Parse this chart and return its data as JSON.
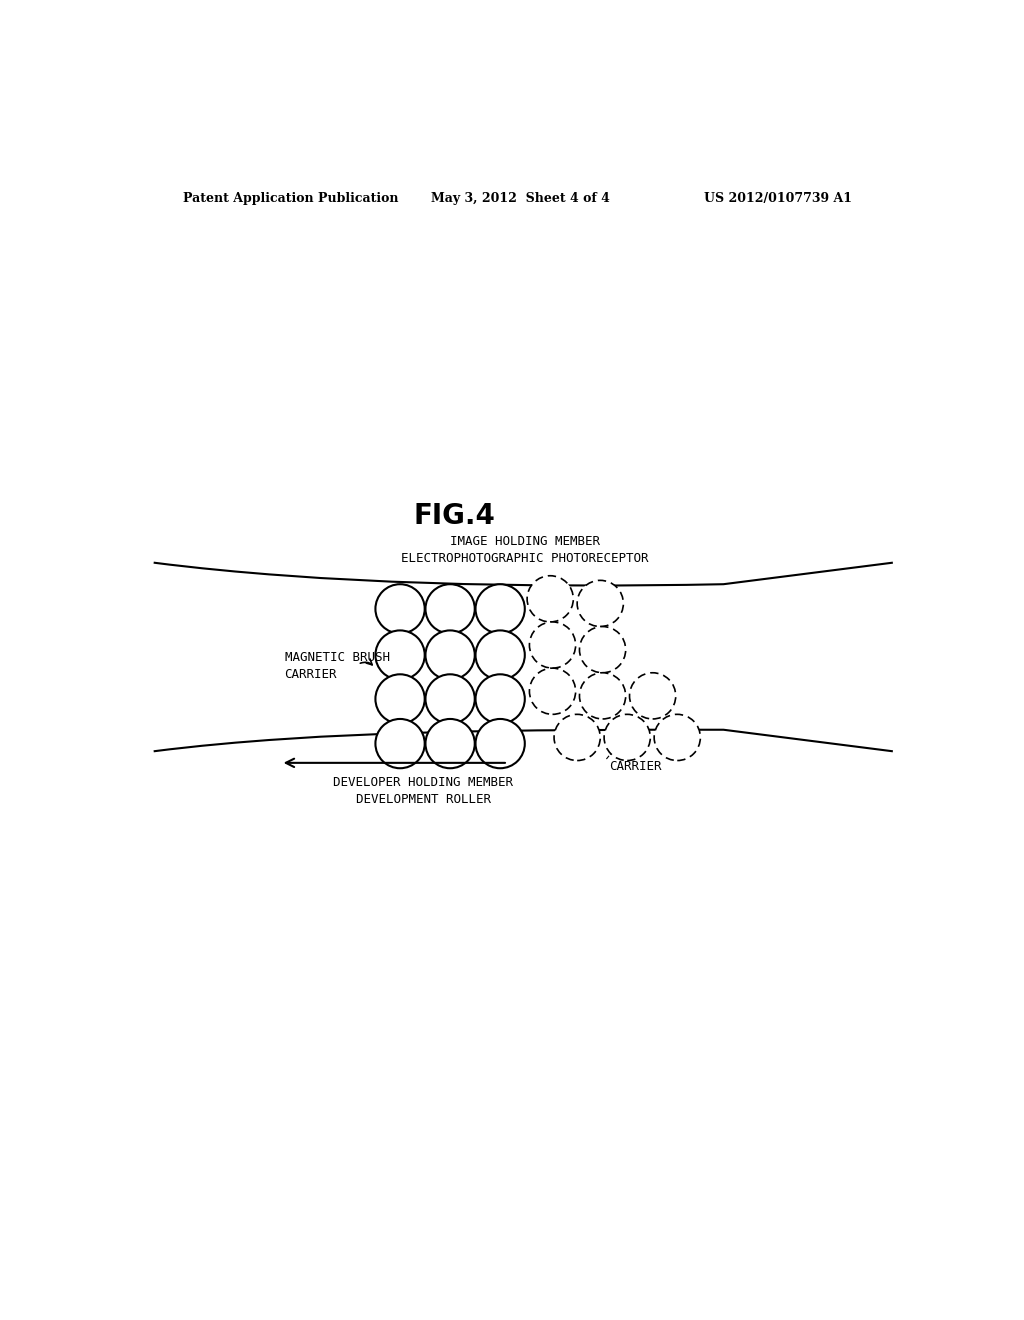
{
  "fig_title": "FIG.4",
  "header_left": "Patent Application Publication",
  "header_center": "May 3, 2012  Sheet 4 of 4",
  "header_right": "US 2012/0107739 A1",
  "label_image_holding": "IMAGE HOLDING MEMBER",
  "label_electrophotographic": "ELECTROPHOTOGRAPHIC PHOTORECEPTOR",
  "label_magnetic_brush": "MAGNETIC BRUSH",
  "label_carrier_left": "CARRIER",
  "label_developer_holding": "DEVELOPER HOLDING MEMBER",
  "label_development_roller": "DEVELOPMENT ROLLER",
  "label_carrier_right": "CARRIER",
  "bg_color": "#ffffff",
  "line_color": "#000000"
}
